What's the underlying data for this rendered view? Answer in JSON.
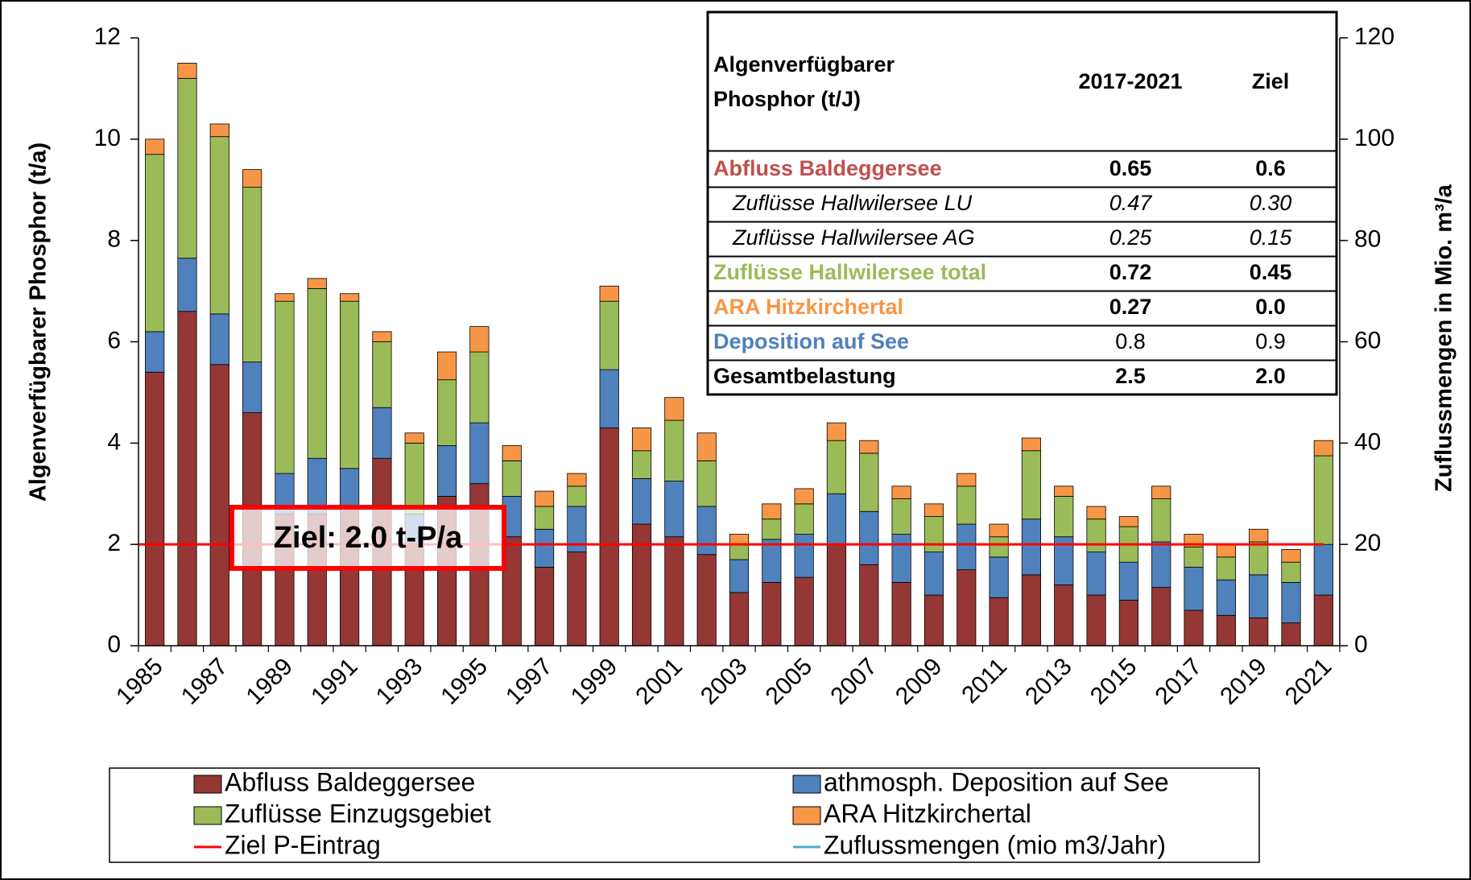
{
  "chart_data": {
    "type": "bar",
    "stacked": true,
    "ylabel": "Algenverfügbarer Phosphor (t/a)",
    "y2label": "Zuflussmengen in Mio. m³/a",
    "categories": [
      "1985",
      null,
      "1987",
      null,
      "1989",
      null,
      "1991",
      null,
      "1993",
      null,
      "1995",
      null,
      "1997",
      null,
      "1999",
      null,
      "2001",
      null,
      "2003",
      null,
      "2005",
      null,
      "2007",
      null,
      "2009",
      null,
      "2011",
      null,
      "2013",
      null,
      "2015",
      null,
      "2017",
      null,
      "2019",
      null,
      "2021"
    ],
    "series": [
      {
        "name": "Abfluss Baldeggersee",
        "color": "#953735",
        "values": [
          5.4,
          6.6,
          5.55,
          4.6,
          2.6,
          2.6,
          2.7,
          3.7,
          2.0,
          2.95,
          3.2,
          2.15,
          1.55,
          1.85,
          4.3,
          2.4,
          2.15,
          1.8,
          1.05,
          1.25,
          1.35,
          2.0,
          1.6,
          1.25,
          1.0,
          1.5,
          0.95,
          1.4,
          1.2,
          1.0,
          0.9,
          1.15,
          0.7,
          0.6,
          0.55,
          0.45,
          1.0
        ]
      },
      {
        "name": "athmosph. Deposition auf See",
        "color": "#4f81bd",
        "values": [
          0.8,
          1.05,
          1.0,
          1.0,
          0.8,
          1.1,
          0.8,
          1.0,
          0.6,
          1.0,
          1.2,
          0.8,
          0.75,
          0.9,
          1.15,
          0.9,
          1.1,
          0.95,
          0.65,
          0.85,
          0.85,
          1.0,
          1.05,
          0.95,
          0.85,
          0.9,
          0.8,
          1.1,
          0.95,
          0.85,
          0.75,
          0.9,
          0.85,
          0.7,
          0.85,
          0.8,
          1.0
        ]
      },
      {
        "name": "Zuflüsse Einzugsgebiet",
        "color": "#9bbb59",
        "values": [
          3.5,
          3.55,
          3.5,
          3.45,
          3.4,
          3.35,
          3.3,
          1.3,
          1.4,
          1.3,
          1.4,
          0.7,
          0.45,
          0.4,
          1.35,
          0.55,
          1.2,
          0.9,
          0.3,
          0.4,
          0.6,
          1.05,
          1.15,
          0.7,
          0.7,
          0.75,
          0.4,
          1.35,
          0.8,
          0.65,
          0.7,
          0.85,
          0.4,
          0.45,
          0.65,
          0.4,
          1.75
        ]
      },
      {
        "name": "ARA Hitzkirchertal",
        "color": "#f79646",
        "values": [
          0.3,
          0.3,
          0.25,
          0.35,
          0.15,
          0.2,
          0.15,
          0.2,
          0.2,
          0.55,
          0.5,
          0.3,
          0.3,
          0.25,
          0.3,
          0.45,
          0.45,
          0.55,
          0.2,
          0.3,
          0.3,
          0.35,
          0.25,
          0.25,
          0.25,
          0.25,
          0.25,
          0.25,
          0.2,
          0.25,
          0.2,
          0.25,
          0.25,
          0.25,
          0.25,
          0.25,
          0.3
        ]
      }
    ],
    "lines": [
      {
        "name": "Ziel P-Eintrag",
        "color": "#ff0000",
        "value": 2
      },
      {
        "name": "Zuflussmengen (mio m3/Jahr)",
        "color": "#4bacc6",
        "axis": "y2"
      }
    ],
    "annotation": "Ziel: 2.0 t-P/a",
    "ylim": [
      0,
      12
    ],
    "yticks": [
      0,
      2,
      4,
      6,
      8,
      10,
      12
    ],
    "y2lim": [
      0,
      120
    ],
    "y2ticks": [
      0,
      20,
      40,
      60,
      80,
      100,
      120
    ],
    "legend": "bottom"
  },
  "table": {
    "header_lines": [
      "Algenverfügbarer",
      "Phosphor (t/J)"
    ],
    "columns": [
      "2017-2021",
      "Ziel"
    ],
    "rows": [
      [
        "Abfluss Baldeggersee",
        "0.65",
        "0.6"
      ],
      [
        "Zuflüsse Hallwilersee LU",
        "0.47",
        "0.30"
      ],
      [
        "Zuflüsse Hallwilersee AG",
        "0.25",
        "0.15"
      ],
      [
        "Zuflüsse Hallwilersee total",
        "0.72",
        "0.45"
      ],
      [
        "ARA Hitzkirchertal",
        "0.27",
        "0.0"
      ],
      [
        "Deposition auf See",
        "0.8",
        "0.9"
      ],
      [
        "Gesamtbelastung",
        "2.5",
        "2.0"
      ]
    ]
  }
}
